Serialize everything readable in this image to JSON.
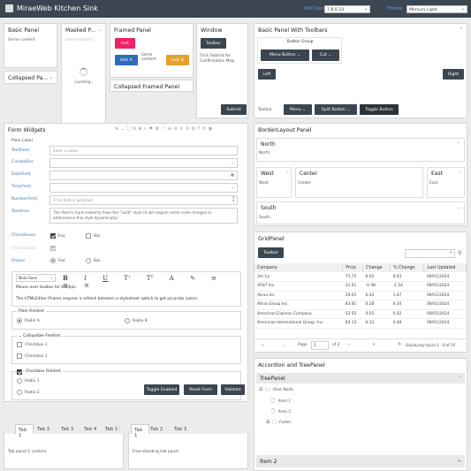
{
  "header": {
    "app_title": "MiraeWeb Kitchen Sink",
    "sdk_label": "SDK Version",
    "sdk_value": "7.8.0.33",
    "theme_label": "Theme",
    "theme_value": "Mercury Light"
  },
  "basic_panel": {
    "title": "Basic Panel",
    "content": "Some content"
  },
  "collapsed_panel": {
    "title": "Collapsed Pa..."
  },
  "masked_panel": {
    "title": "Masked P...",
    "content": "Some content",
    "loading": "Loading..."
  },
  "framed_panel": {
    "title": "Framed Panel",
    "btn1": "test",
    "btn2": "test A",
    "btn3": "test B",
    "content": "Some content"
  },
  "collapsed_framed_panel": {
    "title": "Collapsed Framed Panel"
  },
  "window_panel": {
    "title": "Window",
    "toolbar_btn": "Toolbar",
    "hint": "Click Submit for Confirmation Msg.",
    "submit": "Submit"
  },
  "toolbars_panel": {
    "title": "Basic Panel With Toolbars",
    "button_group": "Button Group",
    "menu_button": "Menu Button",
    "cut": "Cut",
    "left": "Left",
    "right": "Right",
    "toolbar_label": "Toolbar",
    "menu": "Menu",
    "split_button": "Split Button",
    "toggle_button": "Toggle Button"
  },
  "form": {
    "title": "Form Widgets",
    "plain_label": "Plain Label",
    "textfield_label": "TextField",
    "textfield_placeholder": "Enter a value",
    "combobox_label": "ComboBox",
    "datefield_label": "DateField",
    "timefield_label": "TimeField",
    "numberfield_label": "NumberField",
    "numberfield_placeholder": "(This field is optional)",
    "textarea_label": "TextArea",
    "textarea_value": "This field is hard-coded to have the \"valid\" style (it will require some code changes to add/remove this style dynamically)",
    "checkboxes_label": "Checkboxes",
    "checkboxes_disabled_label": "Checkboxes",
    "foo": "Foo",
    "bar": "Bar",
    "radios_label": "Radios",
    "font_select": "Noto Sans",
    "editor_text1": "Mouse over toolbar for tooltips.",
    "editor_text2": "The HTMLEditor IFrame requires a refresh between a stylesheet switch to get accurate colors.",
    "plain_fieldset": "Plain Fieldset",
    "radio_a": "Radio A",
    "radio_b": "Radio B",
    "collapsible_fieldset": "Collapsible Fieldset",
    "checkbox1": "Checkbox 1",
    "checkbox2": "Checkbox 2",
    "checkbox_fieldset": "Checkbox Fieldset",
    "radio1": "Radio 1",
    "radio2": "Radio 2",
    "toggle_enabled": "Toggle Enabled",
    "reset_form": "Reset Form",
    "validate": "Validate"
  },
  "tabs_left": {
    "tabs": [
      "Tab 1",
      "Tab 2",
      "Tab 3",
      "Tab 4",
      "Tab 1"
    ],
    "content": "Tab panel 1 content"
  },
  "tabs_right": {
    "tabs": [
      "Tab 1",
      "Tab 2",
      "Tab 3"
    ],
    "content": "Free-standing tab panel"
  },
  "border_layout": {
    "title": "BorderLayout Panel",
    "north": "North",
    "north_body": "North",
    "west": "West",
    "west_body": "West",
    "center": "Center",
    "center_body": "Center",
    "east": "East",
    "east_body": "East",
    "south": "South",
    "south_body": "South"
  },
  "grid": {
    "title": "GridPanel",
    "toolbar_btn": "Toolbar",
    "columns": [
      "Company",
      "Price",
      "Change",
      "% Change",
      "Last Updated"
    ],
    "rows": [
      [
        "3m Co",
        "71.72",
        "0.02",
        "0.03",
        "09/01/2024"
      ],
      [
        "AT&T Inc.",
        "31.61",
        "-0.48",
        "-1.54",
        "09/01/2024"
      ],
      [
        "Alcoa Inc",
        "29.01",
        "0.42",
        "1.47",
        "09/01/2024"
      ],
      [
        "Altria Group Inc",
        "83.81",
        "0.28",
        "0.34",
        "09/01/2024"
      ],
      [
        "American Express Company",
        "52.55",
        "0.01",
        "0.02",
        "09/01/2024"
      ],
      [
        "American International Group, Inc.",
        "64.13",
        "0.31",
        "0.49",
        "09/01/2024"
      ]
    ],
    "page_label": "Page",
    "page_value": "1",
    "of_pages": "of 2",
    "status": "Displaying topics 1 - 8 of 10"
  },
  "accordion": {
    "title": "Accordion and TreePanel",
    "tree_title": "TreePanel",
    "root": "Root Node",
    "item1": "Item 1",
    "item2": "Item 2",
    "folder": "Folder",
    "item2_header": "Item 2"
  },
  "colors": {
    "accent": "#3c4650",
    "link": "#3d7cc2",
    "pink": "#ee2266",
    "blue": "#2f6db8",
    "orange": "#e5a12a"
  }
}
